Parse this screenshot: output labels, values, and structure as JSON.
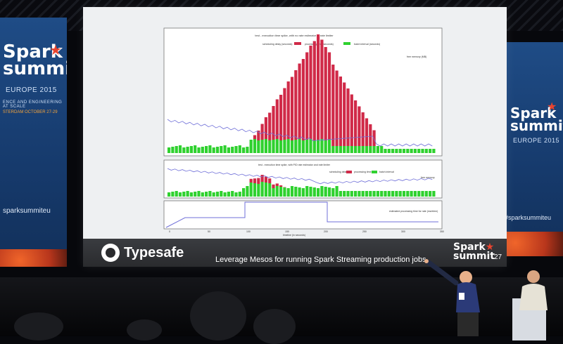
{
  "left_banner": {
    "logo_word": "Spark",
    "logo_word_2": "summit",
    "edition": "EUROPE 2015",
    "tagline": "ENCE AND ENGINEERING AT SCALE",
    "dates": "STERDAM OCTOBER 27-29",
    "handle": "sparksummiteu"
  },
  "right_banner": {
    "logo_word": "Spark",
    "logo_word_2": "summit",
    "edition": "EUROPE 2015",
    "handle": "#sparksummiteu"
  },
  "slide": {
    "chart1": {
      "title": "test - execution time spike, with no rate estimator or rate limiter",
      "legend": [
        "scheduling delay (seconds)",
        "processing time (seconds)",
        "batch interval (seconds)"
      ],
      "right_legend": "free memory (MB)"
    },
    "chart2": {
      "title": "test - execution time spike, with PID rate estimator and rate limiter",
      "legend": [
        "scheduling delay",
        "processing time",
        "batch interval"
      ],
      "right_legend": "free memory"
    },
    "chart3": {
      "legend": "estimated processing time for rate (ms/elem)",
      "xlabel": "timeline (in seconds)",
      "xticks": [
        "0",
        "50",
        "100",
        "150",
        "200",
        "250",
        "300",
        "350"
      ]
    },
    "company": "Typesafe",
    "title": "Leverage Mesos for running Spark Streaming production jobs",
    "footer_logo_1": "Spark",
    "footer_logo_2": "summit",
    "page_number": "27"
  },
  "colors": {
    "processing_red": "#d02a48",
    "batch_green": "#2fd12f",
    "memory_line": "#6f6fd8",
    "banner_blue": "#1f4c86",
    "accent_orange": "#e8442f"
  }
}
